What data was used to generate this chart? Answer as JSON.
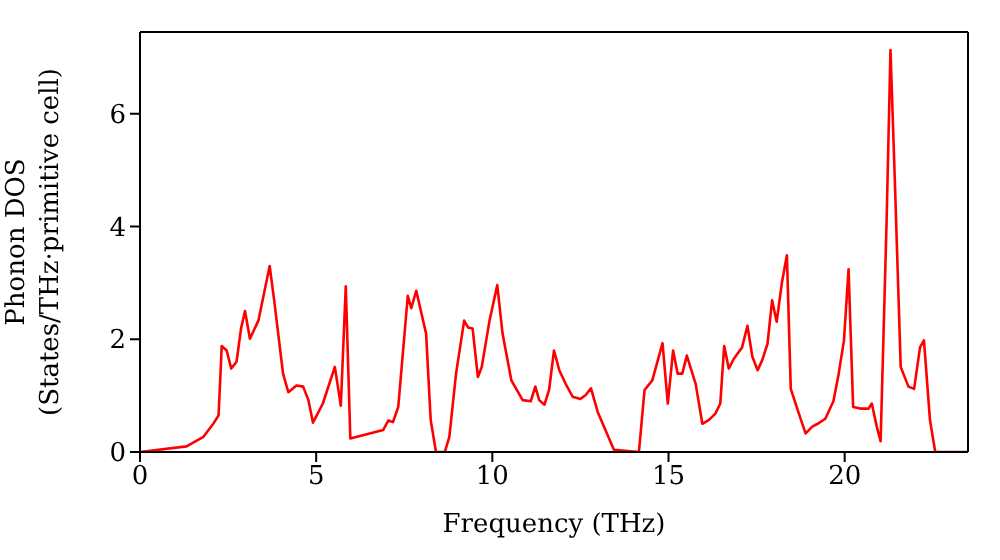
{
  "chart_data": {
    "type": "line",
    "xlabel": "Frequency (THz)",
    "ylabel": "Phonon DOS\n(States/THz·primitive cell)",
    "xlim": [
      0,
      23.5
    ],
    "xticks": [
      0,
      5,
      10,
      15,
      20
    ],
    "ylim": [
      0,
      7.45
    ],
    "yticks": [
      0,
      2,
      4,
      6
    ],
    "marker": "none",
    "line_style": "solid",
    "series": [
      {
        "color": "#ff0000",
        "x": [
          0,
          1.32,
          1.8,
          2.08,
          2.23,
          2.32,
          2.46,
          2.59,
          2.74,
          2.87,
          2.98,
          3.12,
          3.36,
          3.68,
          3.81,
          4.06,
          4.21,
          4.44,
          4.63,
          4.78,
          4.91,
          5.19,
          5.53,
          5.7,
          5.84,
          5.97,
          6.9,
          7.05,
          7.18,
          7.33,
          7.6,
          7.7,
          7.84,
          8.12,
          8.25,
          8.4,
          8.65,
          8.78,
          8.97,
          9.2,
          9.31,
          9.44,
          9.59,
          9.7,
          9.92,
          10.14,
          10.29,
          10.54,
          10.86,
          11.09,
          11.22,
          11.33,
          11.48,
          11.61,
          11.75,
          11.9,
          12.08,
          12.28,
          12.5,
          12.65,
          12.8,
          12.99,
          13.45,
          14.16,
          14.32,
          14.54,
          14.83,
          14.98,
          15.13,
          15.26,
          15.39,
          15.52,
          15.77,
          15.96,
          16.15,
          16.33,
          16.47,
          16.58,
          16.71,
          16.85,
          17.09,
          17.24,
          17.38,
          17.53,
          17.66,
          17.81,
          17.94,
          18.07,
          18.22,
          18.36,
          18.47,
          18.7,
          18.89,
          19.08,
          19.26,
          19.45,
          19.68,
          19.83,
          19.98,
          20.11,
          20.24,
          20.44,
          20.68,
          20.77,
          20.91,
          21.02,
          21.19,
          21.3,
          21.43,
          21.59,
          21.81,
          21.97,
          22.14,
          22.25,
          22.42,
          22.57,
          23.5
        ],
        "values": [
          0,
          0.1,
          0.27,
          0.5,
          0.65,
          1.88,
          1.8,
          1.48,
          1.6,
          2.2,
          2.5,
          2.01,
          2.33,
          3.3,
          2.68,
          1.39,
          1.06,
          1.18,
          1.16,
          0.92,
          0.52,
          0.86,
          1.51,
          0.82,
          2.94,
          0.24,
          0.39,
          0.56,
          0.53,
          0.8,
          2.77,
          2.55,
          2.86,
          2.1,
          0.57,
          0,
          0,
          0.27,
          1.39,
          2.33,
          2.21,
          2.19,
          1.33,
          1.51,
          2.33,
          2.96,
          2.1,
          1.27,
          0.92,
          0.9,
          1.16,
          0.92,
          0.84,
          1.1,
          1.8,
          1.45,
          1.21,
          0.98,
          0.94,
          1.01,
          1.13,
          0.71,
          0.04,
          0,
          1.1,
          1.27,
          1.93,
          0.86,
          1.8,
          1.39,
          1.39,
          1.71,
          1.21,
          0.5,
          0.57,
          0.68,
          0.86,
          1.88,
          1.48,
          1.65,
          1.86,
          2.24,
          1.69,
          1.45,
          1.63,
          1.92,
          2.69,
          2.31,
          3.01,
          3.49,
          1.12,
          0.68,
          0.33,
          0.45,
          0.51,
          0.59,
          0.9,
          1.39,
          1.98,
          3.24,
          0.8,
          0.77,
          0.77,
          0.86,
          0.45,
          0.19,
          4.1,
          7.13,
          4.69,
          1.51,
          1.16,
          1.12,
          1.86,
          1.98,
          0.57,
          0,
          0
        ]
      }
    ]
  }
}
